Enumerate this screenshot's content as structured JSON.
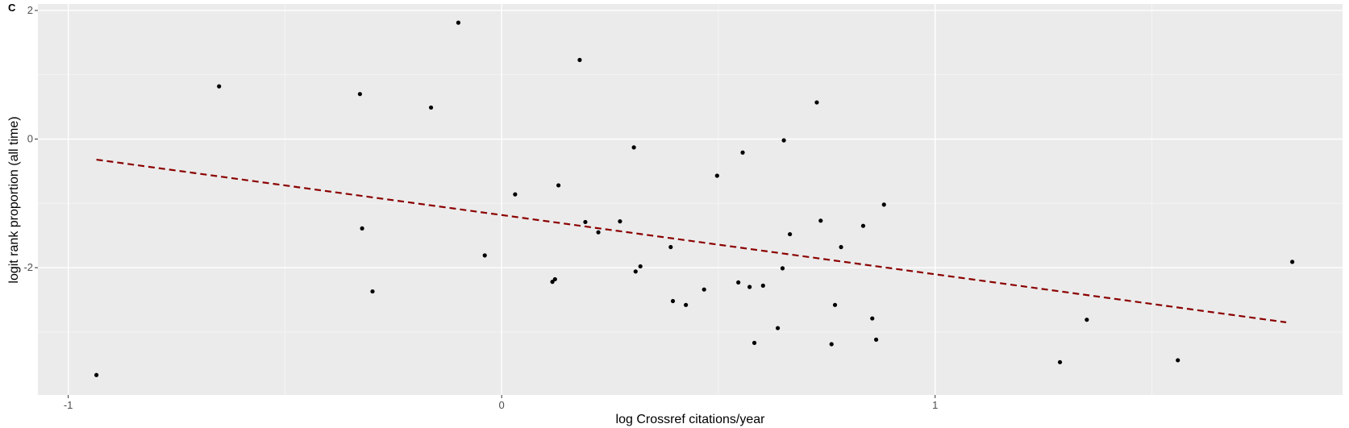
{
  "panel_label": "C",
  "chart_data": {
    "type": "scatter",
    "xlabel": "log Crossref citations/year",
    "ylabel": "logit rank proportion (all time)",
    "xlim": [
      -1.07,
      1.94
    ],
    "ylim": [
      -3.98,
      2.1
    ],
    "x_ticks": [
      -1,
      0,
      1
    ],
    "x_tick_labels": [
      "-1",
      "0",
      "1"
    ],
    "y_ticks": [
      -2,
      0,
      2
    ],
    "y_tick_labels": [
      "-2",
      "0",
      "2"
    ],
    "grid": true,
    "background": "#ebebeb",
    "points": [
      [
        -0.935,
        -3.67
      ],
      [
        -0.652,
        0.82
      ],
      [
        -0.327,
        0.7
      ],
      [
        -0.322,
        -1.39
      ],
      [
        -0.298,
        -2.37
      ],
      [
        -0.163,
        0.49
      ],
      [
        -0.1,
        1.81
      ],
      [
        -0.039,
        -1.81
      ],
      [
        0.031,
        -0.86
      ],
      [
        0.117,
        -2.22
      ],
      [
        0.123,
        -2.18
      ],
      [
        0.131,
        -0.72
      ],
      [
        0.18,
        1.23
      ],
      [
        0.193,
        -1.29
      ],
      [
        0.223,
        -1.45
      ],
      [
        0.273,
        -1.28
      ],
      [
        0.305,
        -0.13
      ],
      [
        0.309,
        -2.06
      ],
      [
        0.32,
        -1.98
      ],
      [
        0.39,
        -1.68
      ],
      [
        0.395,
        -2.52
      ],
      [
        0.425,
        -2.58
      ],
      [
        0.467,
        -2.34
      ],
      [
        0.497,
        -0.57
      ],
      [
        0.546,
        -2.23
      ],
      [
        0.556,
        -0.21
      ],
      [
        0.572,
        -2.3
      ],
      [
        0.583,
        -3.17
      ],
      [
        0.603,
        -2.28
      ],
      [
        0.637,
        -2.94
      ],
      [
        0.648,
        -2.01
      ],
      [
        0.651,
        -0.02
      ],
      [
        0.665,
        -1.48
      ],
      [
        0.727,
        0.57
      ],
      [
        0.736,
        -1.27
      ],
      [
        0.761,
        -3.19
      ],
      [
        0.769,
        -2.58
      ],
      [
        0.783,
        -1.68
      ],
      [
        0.834,
        -1.35
      ],
      [
        0.855,
        -2.79
      ],
      [
        0.864,
        -3.12
      ],
      [
        0.882,
        -1.02
      ],
      [
        1.288,
        -3.47
      ],
      [
        1.35,
        -2.81
      ],
      [
        1.56,
        -3.44
      ],
      [
        1.824,
        -1.91
      ]
    ],
    "trend_line": {
      "x": [
        -0.935,
        1.81
      ],
      "y": [
        -0.32,
        -2.85
      ],
      "style": "dashed",
      "color": "#8b0000"
    },
    "point_color": "#000000"
  }
}
